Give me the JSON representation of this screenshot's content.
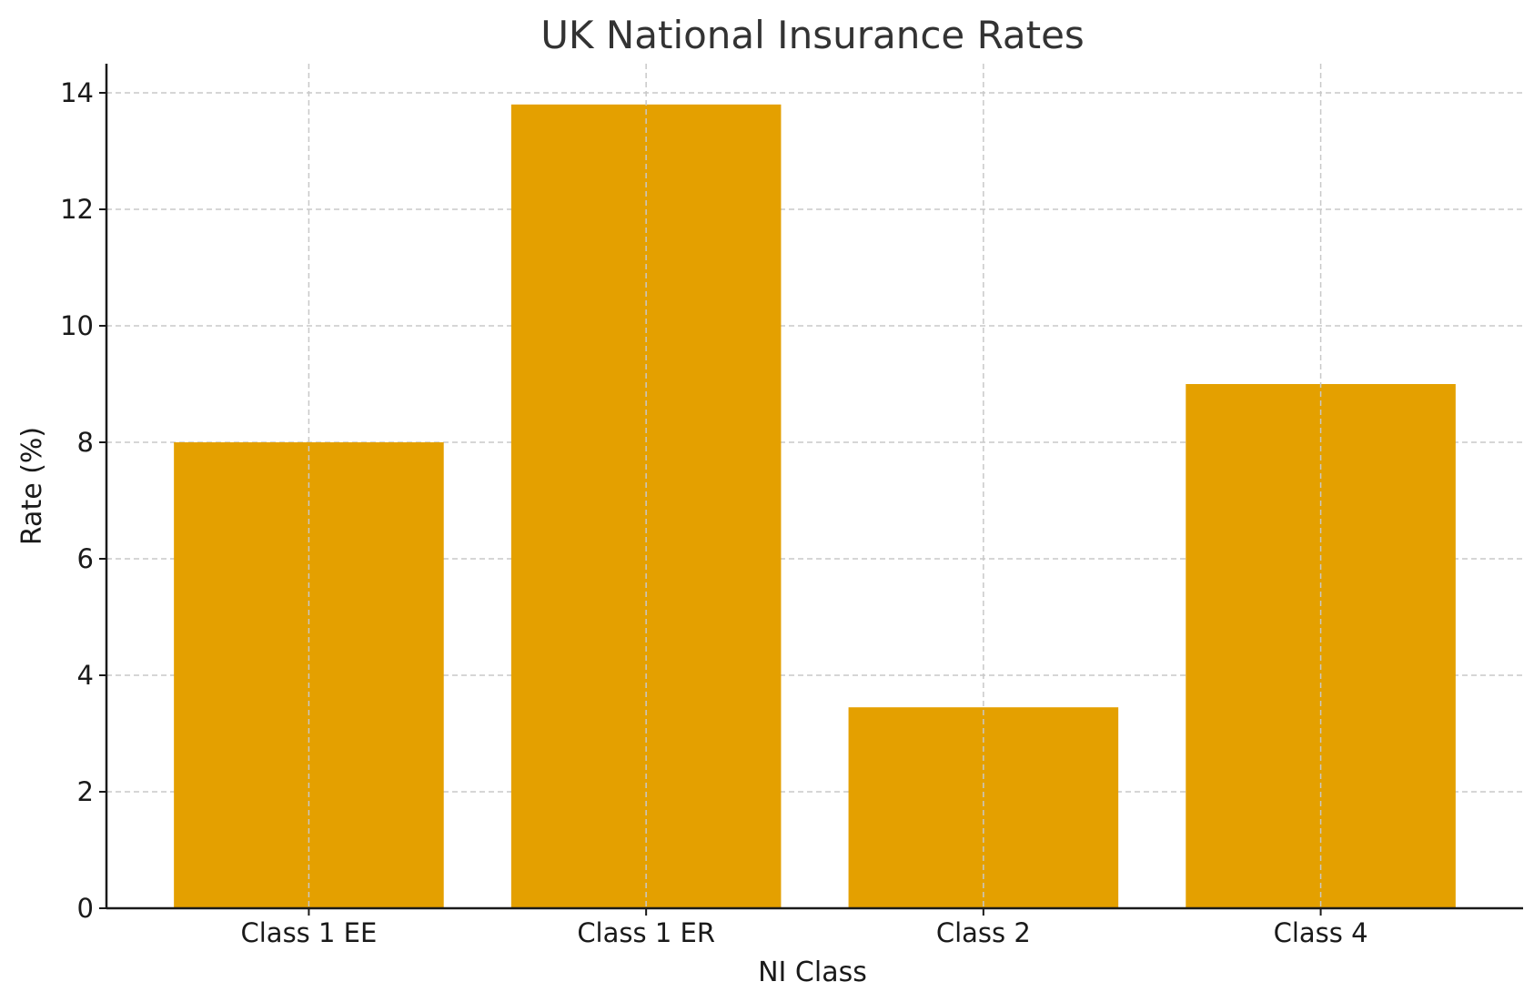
{
  "chart_data": {
    "type": "bar",
    "title": "UK National Insurance Rates",
    "xlabel": "NI Class",
    "ylabel": "Rate (%)",
    "categories": [
      "Class 1 EE",
      "Class 1 ER",
      "Class 2",
      "Class 4"
    ],
    "values": [
      8,
      13.8,
      3.45,
      9
    ],
    "ylim": [
      0,
      14.5
    ],
    "yticks": [
      0,
      2,
      4,
      6,
      8,
      10,
      12,
      14
    ],
    "grid": true,
    "bar_color": "#e4a000"
  }
}
